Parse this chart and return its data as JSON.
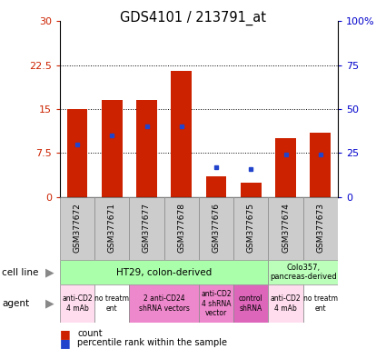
{
  "title": "GDS4101 / 213791_at",
  "samples": [
    "GSM377672",
    "GSM377671",
    "GSM377677",
    "GSM377678",
    "GSM377676",
    "GSM377675",
    "GSM377674",
    "GSM377673"
  ],
  "counts": [
    15.0,
    16.5,
    16.5,
    21.5,
    3.5,
    2.5,
    10.0,
    11.0
  ],
  "percentile_ranks": [
    30.0,
    35.0,
    40.0,
    40.0,
    17.0,
    16.0,
    24.0,
    24.0
  ],
  "y_left_ticks": [
    0,
    7.5,
    15,
    22.5,
    30
  ],
  "y_right_ticks": [
    0,
    25,
    50,
    75,
    100
  ],
  "bar_color": "#cc2200",
  "dot_color": "#2244cc",
  "background_color": "#ffffff",
  "left_tick_color": "#cc2200",
  "right_tick_color": "#0000cc",
  "cell_line_ht29_color": "#aaffaa",
  "cell_line_colo_color": "#bbffbb",
  "sample_box_color": "#cccccc",
  "agent_configs": [
    [
      0,
      1,
      "#ffddee",
      "anti-CD2\n4 mAb"
    ],
    [
      1,
      2,
      "#ffffff",
      "no treatm\nent"
    ],
    [
      2,
      4,
      "#ee88cc",
      "2 anti-CD24\nshRNA vectors"
    ],
    [
      4,
      5,
      "#ee88cc",
      "anti-CD2\n4 shRNA\nvector"
    ],
    [
      5,
      6,
      "#dd66bb",
      "control\nshRNA"
    ],
    [
      6,
      7,
      "#ffddee",
      "anti-CD2\n4 mAb"
    ],
    [
      7,
      8,
      "#ffffff",
      "no treatm\nent"
    ]
  ]
}
